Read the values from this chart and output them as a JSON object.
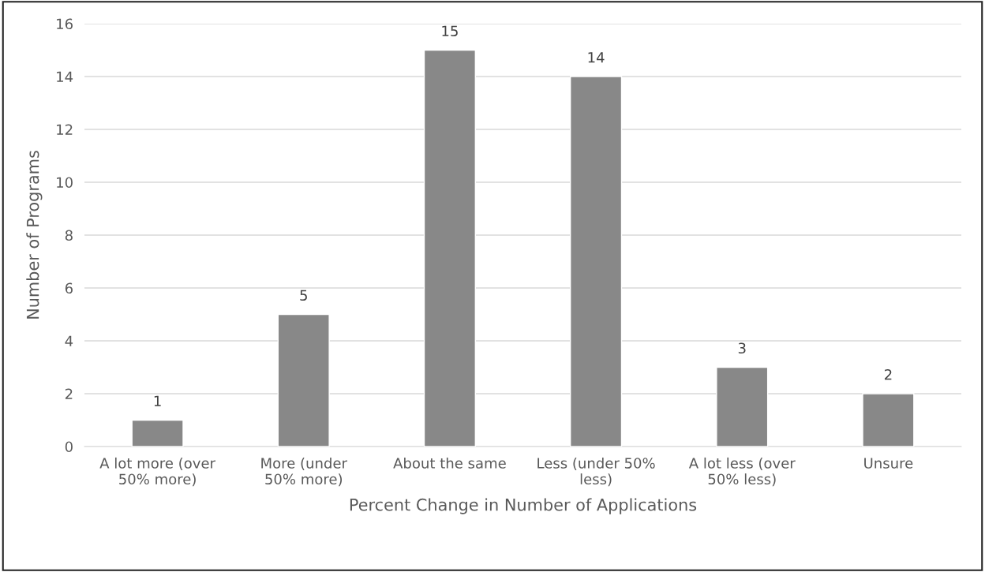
{
  "chart_data": {
    "type": "bar",
    "xlabel": "Percent Change in Number of Applications",
    "ylabel": "Number of Programs",
    "categories": [
      "A lot more (over\n50% more)",
      "More (under\n50% more)",
      "About the same",
      "Less (under 50%\nless)",
      "A lot less (over\n50% less)",
      "Unsure"
    ],
    "values": [
      1,
      5,
      15,
      14,
      3,
      2
    ],
    "color": "#888888",
    "ylim": [
      0,
      16
    ],
    "yticks": [
      0,
      2,
      4,
      6,
      8,
      10,
      12,
      14,
      16
    ],
    "grid": "y",
    "data_labels": true,
    "legend": false
  }
}
